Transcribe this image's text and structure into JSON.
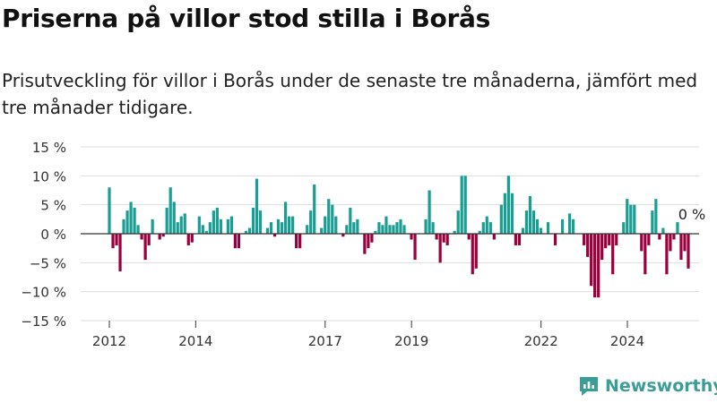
{
  "title": "Priserna på villor stod stilla i Borås",
  "subtitle": "Prisutveckling för villor i Borås under de senaste tre månaderna, jämfört med tre månader tidigare.",
  "brand": {
    "name": "Newsworthy",
    "color": "#3a9e96"
  },
  "colors": {
    "positive": "#1a9e94",
    "negative": "#99003d",
    "grid": "#dddddd",
    "axis": "#333333"
  },
  "chart_data": {
    "type": "bar",
    "xlabel": "",
    "ylabel": "",
    "ylim": [
      -15,
      15
    ],
    "yticks": [
      15,
      10,
      5,
      0,
      -5,
      -10,
      -15
    ],
    "ytick_labels": [
      "15 %",
      "10 %",
      "5 %",
      "0 %",
      "−5 %",
      "−10 %",
      "−15 %"
    ],
    "xticks": [
      {
        "label": "2012",
        "x": 2012.0
      },
      {
        "label": "2014",
        "x": 2014.0
      },
      {
        "label": "2017",
        "x": 2017.0
      },
      {
        "label": "2019",
        "x": 2019.0
      },
      {
        "label": "2022",
        "x": 2022.0
      },
      {
        "label": "2024",
        "x": 2024.0
      }
    ],
    "last_value_label": "0 %",
    "start_year": 2012.0,
    "period_years": 0.0833,
    "values": [
      8,
      -2.5,
      -2,
      -6.5,
      2.5,
      4,
      5.5,
      4.5,
      1.5,
      -1,
      -4.5,
      -2,
      2.5,
      0,
      -1,
      -0.5,
      4.5,
      8,
      5.5,
      2,
      3,
      3.5,
      -2,
      -1.5,
      0,
      3,
      1.5,
      0.5,
      2,
      4,
      4.5,
      2.5,
      0,
      2.5,
      3,
      -2.5,
      -2.5,
      0,
      0.5,
      1,
      4.5,
      9.5,
      4,
      0,
      1,
      2,
      -0.5,
      2.5,
      2,
      5.5,
      3,
      3,
      -2.5,
      -2.5,
      0,
      1.5,
      4,
      8.5,
      0,
      1,
      3,
      6,
      5,
      3,
      0,
      -0.5,
      1.5,
      4.5,
      2,
      2.5,
      0,
      -3.5,
      -2.5,
      -1.5,
      0.5,
      2,
      1.5,
      3,
      1.5,
      1.5,
      2,
      2.5,
      1.5,
      0,
      -1,
      -4.5,
      0,
      0,
      2.5,
      7.5,
      2,
      -1,
      -5,
      -1.5,
      -2,
      0,
      0.5,
      4,
      10,
      10,
      -1,
      -7,
      -6,
      0.5,
      2,
      3,
      2,
      -1,
      0,
      5,
      7,
      10,
      7,
      -2,
      -2,
      1,
      4,
      6.5,
      4,
      2.5,
      1,
      0,
      2,
      0,
      -2,
      0,
      2.5,
      0,
      3.5,
      2.5,
      0,
      0,
      -2,
      -4,
      -9,
      -11,
      -11,
      -4.5,
      -2.5,
      -2,
      -7,
      -2,
      0,
      2,
      6,
      5,
      5,
      0,
      -3,
      -7,
      -2,
      4,
      6,
      -1,
      1,
      -7,
      -3,
      -1,
      2,
      -4.5,
      -3,
      -6,
      0
    ]
  }
}
